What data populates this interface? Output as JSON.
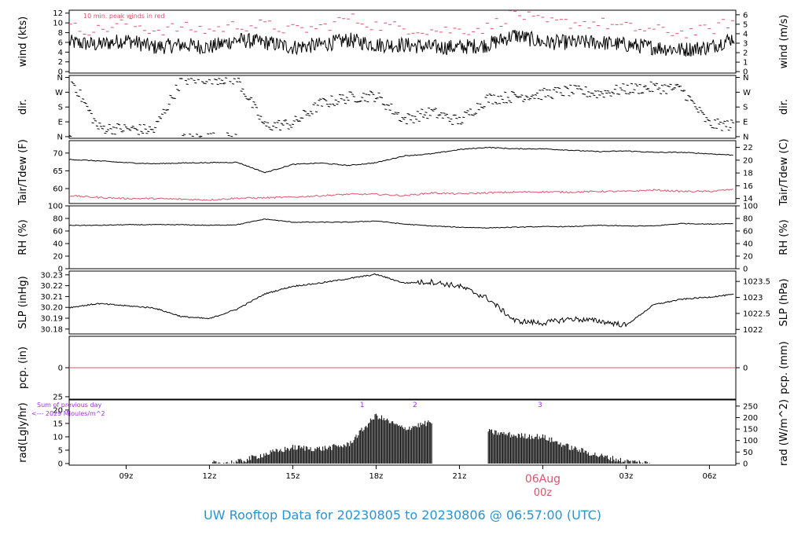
{
  "footer": {
    "title": "UW Rooftop Data for 20230805  to  20230806 @ 06:57:00  (UTC)",
    "color": "#2b93d0"
  },
  "colors": {
    "red": "#df536b",
    "purple": "#9b30e0",
    "black": "#000000"
  },
  "x_axis": {
    "ticks": [
      "09z",
      "12z",
      "15z",
      "18z",
      "21z",
      "00z",
      "03z",
      "06z"
    ],
    "tick_hours": [
      9,
      12,
      15,
      18,
      21,
      24,
      27,
      30
    ],
    "date_label": "06Aug",
    "date_sublabel": "00z",
    "xlim_hours": [
      6.95,
      30.95
    ]
  },
  "panels": [
    {
      "key": "wind",
      "left_label": "wind (kts)",
      "right_label": "wind (m/s)",
      "left_ticks": [
        "0",
        "2",
        "4",
        "6",
        "8",
        "10",
        "12"
      ],
      "left_tick_values": [
        0,
        2,
        4,
        6,
        8,
        10,
        12
      ],
      "right_ticks": [
        "0",
        "1",
        "2",
        "3",
        "4",
        "5",
        "6"
      ],
      "right_tick_values": [
        0,
        1,
        2,
        3,
        4,
        5,
        6
      ],
      "ylim": [
        -0.3,
        12.6
      ],
      "annotation": "10 min. peak winds in red"
    },
    {
      "key": "dir",
      "left_label": "dir.",
      "right_label": "dir.",
      "left_ticks": [
        "N",
        "E",
        "S",
        "W",
        "N"
      ],
      "left_tick_values": [
        0,
        90,
        180,
        270,
        360
      ],
      "right_ticks": [
        "N",
        "E",
        "S",
        "W",
        "N"
      ],
      "right_tick_values": [
        0,
        90,
        180,
        270,
        360
      ],
      "ylim": [
        -10,
        372
      ]
    },
    {
      "key": "temp",
      "left_label": "Tair/Tdew (F)",
      "right_label": "Tair/Tdew (C)",
      "left_ticks": [
        "60",
        "65",
        "70"
      ],
      "left_tick_values": [
        60,
        65,
        70
      ],
      "right_ticks": [
        "14",
        "16",
        "18",
        "20",
        "22"
      ],
      "right_tick_values": [
        14,
        16,
        18,
        20,
        22
      ],
      "ylim": [
        55.8,
        73.5
      ]
    },
    {
      "key": "rh",
      "left_label": "RH (%)",
      "right_label": "RH (%)",
      "left_ticks": [
        "0",
        "20",
        "40",
        "60",
        "80",
        "100"
      ],
      "left_tick_values": [
        0,
        20,
        40,
        60,
        80,
        100
      ],
      "right_ticks": [
        "0",
        "20",
        "40",
        "60",
        "80",
        "100"
      ],
      "right_tick_values": [
        0,
        20,
        40,
        60,
        80,
        100
      ],
      "ylim": [
        0,
        100
      ]
    },
    {
      "key": "slp",
      "left_label": "SLP (inHg)",
      "right_label": "SLP (hPa)",
      "left_ticks": [
        "30.18",
        "30.19",
        "30.20",
        "30.21",
        "30.22",
        "30.23"
      ],
      "left_tick_values": [
        30.18,
        30.19,
        30.2,
        30.21,
        30.22,
        30.23
      ],
      "right_ticks": [
        "1022",
        "1022.5",
        "1023",
        "1023.5"
      ],
      "right_tick_values": [
        1022,
        1022.5,
        1023,
        1023.5
      ],
      "ylim": [
        30.1755,
        30.2335
      ]
    },
    {
      "key": "pcp",
      "left_label": "pcp. (in)",
      "right_label": "pcp. (mm)",
      "left_ticks": [
        "0"
      ],
      "left_tick_values": [
        0
      ],
      "right_ticks": [
        "0"
      ],
      "right_tick_values": [
        0
      ],
      "ylim": [
        -1,
        1
      ]
    },
    {
      "key": "rad",
      "left_label": "rad(Lgly/hr)",
      "right_label": "rad (W/m^2)",
      "left_ticks": [
        "0",
        "5",
        "10",
        "15",
        "20",
        "25"
      ],
      "left_tick_values": [
        0,
        5,
        10,
        15,
        20,
        25
      ],
      "right_ticks": [
        "0",
        "50",
        "100",
        "150",
        "200",
        "250"
      ],
      "right_tick_values": [
        0,
        50,
        100,
        150,
        200,
        250
      ],
      "ylim": [
        -0.6,
        23.8
      ],
      "annotation_1": "Sum of previous day",
      "annotation_2": "<--- 2029 MJoules/m^2",
      "markers": [
        {
          "label": "1",
          "hour": 17.5
        },
        {
          "label": "2",
          "hour": 19.4
        },
        {
          "label": "3",
          "hour": 23.9
        }
      ]
    }
  ],
  "chart_data": {
    "type": "line",
    "x_unit": "hours UTC from 2023-08-05 00z",
    "x": [
      7,
      8,
      9,
      10,
      11,
      12,
      13,
      14,
      15,
      16,
      17,
      18,
      19,
      20,
      21,
      22,
      23,
      24,
      25,
      26,
      27,
      28,
      29,
      30,
      30.9
    ],
    "series": [
      {
        "panel": "wind",
        "unit": "kts",
        "values": [
          6.0,
          5.5,
          6.5,
          5.0,
          5.5,
          5.0,
          6.5,
          6.0,
          5.0,
          5.5,
          6.5,
          5.5,
          5.5,
          5.0,
          5.0,
          5.5,
          7.5,
          6.0,
          6.0,
          6.0,
          5.5,
          5.0,
          4.5,
          5.0,
          7.0
        ]
      },
      {
        "panel": "wind",
        "name": "10 min. peak winds in red",
        "unit": "kts",
        "values": [
          9,
          8.5,
          10,
          8.5,
          9,
          8.5,
          9.5,
          9.5,
          8.5,
          9,
          11,
          9.5,
          9,
          8.5,
          8.5,
          9,
          12,
          10,
          10,
          10,
          9,
          8.5,
          8,
          8.5,
          10.5
        ]
      },
      {
        "panel": "dir",
        "unit": "deg",
        "values": [
          358,
          55,
          48,
          40,
          345,
          355,
          350,
          65,
          80,
          200,
          240,
          250,
          105,
          150,
          95,
          230,
          245,
          260,
          280,
          265,
          290,
          300,
          290,
          75,
          70
        ]
      },
      {
        "panel": "temp",
        "unit": "F",
        "values": [
          68.2,
          67.8,
          67.3,
          67.0,
          67.2,
          67.3,
          67.4,
          64.5,
          66.8,
          67.2,
          66.5,
          67.3,
          69.2,
          69.8,
          71.0,
          71.6,
          71.2,
          71.2,
          70.8,
          70.4,
          70.6,
          70.2,
          70.2,
          69.8,
          69.4
        ]
      },
      {
        "panel": "temp",
        "unit": "F",
        "values": [
          58.0,
          57.5,
          57.2,
          57.2,
          57.0,
          56.8,
          57.3,
          57.4,
          57.6,
          58.0,
          58.4,
          58.4,
          58.0,
          58.8,
          58.5,
          58.8,
          59.0,
          59.1,
          59.0,
          59.2,
          59.2,
          59.6,
          59.2,
          59.2,
          59.8
        ]
      },
      {
        "panel": "rh",
        "unit": "%",
        "values": [
          69,
          69,
          70,
          70,
          70,
          69,
          70,
          79,
          74,
          74,
          74,
          76,
          71,
          68,
          66,
          65,
          66,
          67,
          67,
          69,
          68,
          68,
          72,
          71,
          72
        ]
      },
      {
        "panel": "slp",
        "unit": "inHg",
        "values": [
          30.2,
          30.2035,
          30.2015,
          30.1995,
          30.1915,
          30.1895,
          30.1985,
          30.2125,
          30.2195,
          30.2225,
          30.2265,
          30.2305,
          30.2225,
          30.2235,
          30.2195,
          30.2085,
          30.1875,
          30.1855,
          30.1895,
          30.1875,
          30.1835,
          30.2025,
          30.2075,
          30.2095,
          30.212
        ]
      },
      {
        "panel": "pcp",
        "unit": "in",
        "values": [
          0,
          0,
          0,
          0,
          0,
          0,
          0,
          0,
          0,
          0,
          0,
          0,
          0,
          0,
          0,
          0,
          0,
          0,
          0,
          0,
          0,
          0,
          0,
          0,
          0
        ]
      },
      {
        "panel": "rad",
        "unit": "Lgly/hr",
        "values": [
          0,
          0,
          0,
          0,
          0,
          0,
          0.5,
          3.5,
          6.0,
          5.5,
          7.0,
          18.0,
          13.0,
          15.5,
          null,
          12.0,
          10.5,
          10.0,
          6.0,
          3.0,
          0.8,
          0,
          0,
          0,
          0
        ]
      }
    ]
  }
}
